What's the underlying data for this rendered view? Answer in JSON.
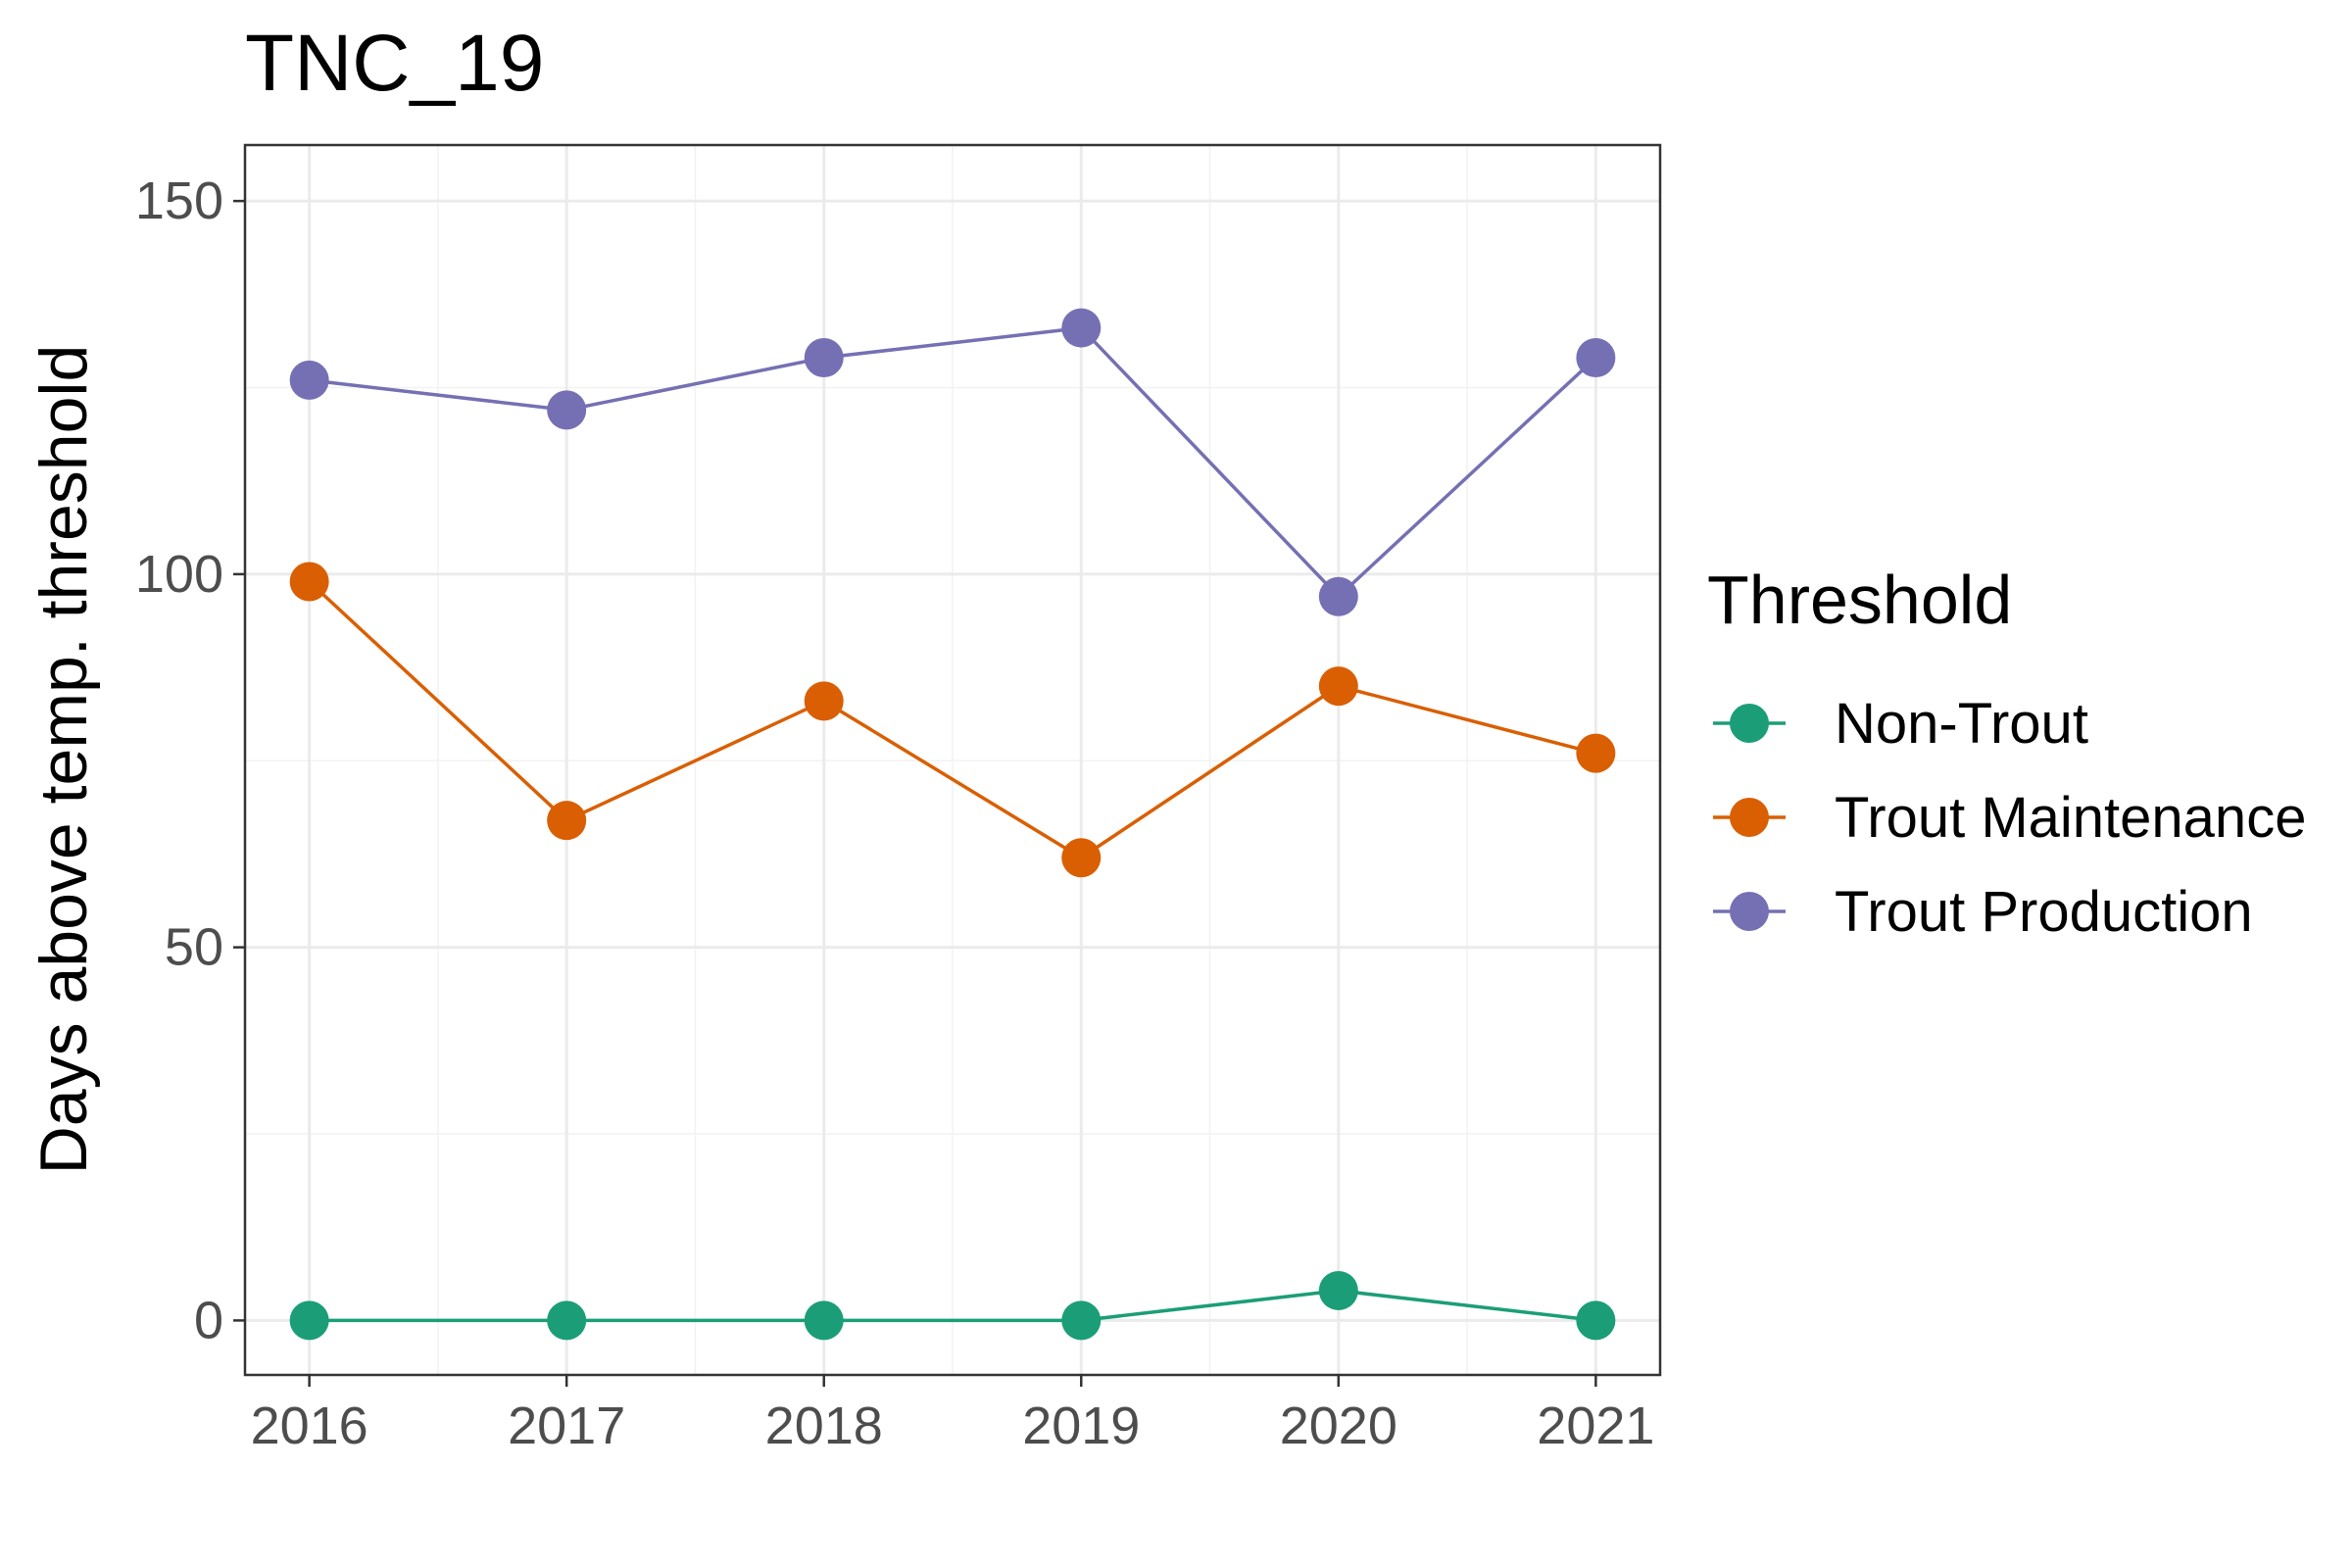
{
  "chart_data": {
    "type": "line",
    "title": "TNC_19",
    "xlabel": "",
    "ylabel": "Days above temp. threshold",
    "x": [
      2016,
      2017,
      2018,
      2019,
      2020,
      2021
    ],
    "x_tick_labels": [
      "2016",
      "2017",
      "2018",
      "2019",
      "2020",
      "2021"
    ],
    "xlim": [
      2015.75,
      2021.25
    ],
    "ylim": [
      -7.3,
      157.5
    ],
    "y_ticks": [
      0,
      50,
      100,
      150
    ],
    "y_tick_labels": [
      "0",
      "50",
      "100",
      "150"
    ],
    "grid": true,
    "legend": {
      "title": "Threshold",
      "position": "right"
    },
    "series": [
      {
        "name": "Non-Trout",
        "color": "#1B9E77",
        "values": [
          0,
          0,
          0,
          0,
          4,
          0
        ]
      },
      {
        "name": "Trout Maintenance",
        "color": "#D95F02",
        "values": [
          99,
          67,
          83,
          62,
          85,
          76
        ]
      },
      {
        "name": "Trout Production",
        "color": "#7570B3",
        "values": [
          126,
          122,
          129,
          133,
          97,
          129
        ]
      }
    ]
  }
}
